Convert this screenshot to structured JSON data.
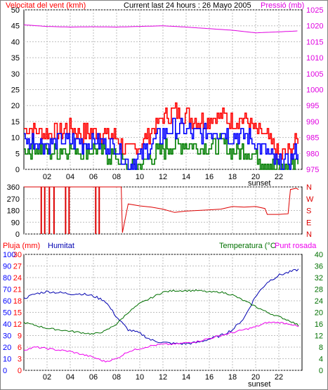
{
  "colors": {
    "frame": "#000000",
    "grid": "#bdbdbd",
    "wind_max": "#ff0000",
    "wind_avg": "#0000ff",
    "wind_min": "#007f00",
    "pressure": "#e000e0",
    "direction": "#dd0000",
    "humidity": "#0000b0",
    "temperature": "#007000",
    "dewpoint": "#ee00ee",
    "rain_axis": "#ff0000",
    "hum_axis": "#0000ff"
  },
  "header": {
    "wind_title": "Velocitat del vent (kmh)",
    "period_title": "Current last 24 hours : 26 Mayo 2005",
    "pressure_title": "Pressió (mb)"
  },
  "bottom_labels": {
    "rain": "Pluja (mm)",
    "humidity": "Humitat",
    "temperature": "Temperatura (°C",
    "dewpoint": "Punt rosada"
  },
  "sunset_label": "sunset",
  "chart_data": [
    {
      "type": "line",
      "title": "Velocitat del vent (kmh)",
      "x": {
        "range": [
          0,
          24
        ],
        "tick_labels": [
          "02",
          "04",
          "06",
          "08",
          "10",
          "12",
          "14",
          "16",
          "18",
          "20",
          "22"
        ]
      },
      "y_left": {
        "label": "Velocitat del vent (kmh)",
        "range": [
          0,
          50
        ],
        "ticks": [
          0,
          5,
          10,
          15,
          20,
          25,
          30,
          35,
          40,
          45,
          50
        ]
      },
      "y_right": {
        "label": "Pressió (mb)",
        "range": [
          975,
          1025
        ],
        "ticks": [
          975,
          980,
          985,
          990,
          995,
          1000,
          1005,
          1010,
          1015,
          1020,
          1025
        ]
      },
      "grid": true,
      "series": [
        {
          "axis": "left",
          "hours": [
            0,
            1,
            2,
            3,
            4,
            5,
            6,
            7,
            8,
            9,
            10,
            11,
            12,
            13,
            14,
            15,
            16,
            17,
            18,
            19,
            20,
            21,
            22,
            23,
            23.7
          ],
          "values": [
            13,
            12,
            11,
            12,
            13,
            11,
            12,
            11,
            10,
            5,
            8,
            12,
            16,
            18,
            17,
            15,
            16,
            17,
            15,
            16,
            12,
            10,
            4,
            6,
            10
          ]
        },
        {
          "axis": "left",
          "hours": [
            0,
            1,
            2,
            3,
            4,
            5,
            6,
            7,
            8,
            9,
            10,
            11,
            12,
            13,
            14,
            15,
            16,
            17,
            18,
            19,
            20,
            21,
            22,
            23,
            23.7
          ],
          "values": [
            9,
            9,
            8,
            9,
            9,
            8,
            9,
            8,
            7,
            2,
            4,
            8,
            11,
            13,
            12,
            11,
            12,
            12,
            10,
            11,
            8,
            5,
            1,
            3,
            7
          ]
        },
        {
          "axis": "left",
          "hours": [
            0,
            1,
            2,
            3,
            4,
            5,
            6,
            7,
            8,
            9,
            10,
            11,
            12,
            13,
            14,
            15,
            16,
            17,
            18,
            19,
            20,
            21,
            22,
            23,
            23.7
          ],
          "values": [
            6,
            7,
            5,
            6,
            7,
            6,
            6,
            5,
            4,
            0,
            1,
            4,
            6,
            8,
            8,
            7,
            7,
            8,
            6,
            6,
            4,
            2,
            0,
            1,
            4
          ]
        },
        {
          "axis": "right",
          "hours": [
            0,
            2,
            4,
            6,
            8,
            10,
            12,
            14,
            16,
            18,
            20,
            22,
            23.7
          ],
          "values": [
            1020.3,
            1019.8,
            1019.6,
            1019.7,
            1019.6,
            1019.8,
            1020.0,
            1019.6,
            1019.1,
            1018.6,
            1017.8,
            1018.1,
            1018.4
          ]
        }
      ]
    },
    {
      "type": "line",
      "title": "",
      "x": {
        "range": [
          0,
          24
        ],
        "tick_labels": []
      },
      "y_left": {
        "range": [
          0,
          360
        ],
        "ticks": [
          0,
          90,
          180,
          270,
          360
        ]
      },
      "y_right": {
        "ticks": [
          "N",
          "E",
          "S",
          "W",
          "N"
        ]
      },
      "grid": true,
      "series": [
        {
          "hours": [
            0,
            0.5,
            1,
            2,
            3,
            4,
            5,
            6,
            7,
            8,
            8.4,
            8.5,
            9,
            10,
            11,
            12,
            13,
            14,
            15,
            16,
            17,
            18,
            19,
            20,
            20.8,
            21,
            22,
            22.8,
            23,
            23.5,
            23.7
          ],
          "values": [
            360,
            360,
            360,
            360,
            360,
            360,
            360,
            360,
            360,
            360,
            360,
            10,
            230,
            215,
            205,
            190,
            165,
            175,
            180,
            185,
            190,
            210,
            205,
            210,
            195,
            150,
            150,
            155,
            340,
            350,
            340
          ]
        }
      ]
    },
    {
      "type": "line",
      "title": "",
      "x": {
        "range": [
          0,
          24
        ],
        "tick_labels": [
          "02",
          "04",
          "06",
          "08",
          "10",
          "12",
          "14",
          "16",
          "18",
          "20",
          "22"
        ]
      },
      "y_left_outer": {
        "label": "Pluja (mm)",
        "ticks": [
          0,
          10,
          20,
          30,
          40,
          50,
          60,
          70,
          80,
          90,
          100
        ]
      },
      "y_left_inner": {
        "label": "Humitat",
        "ticks": [
          0,
          3,
          6,
          9,
          12,
          15,
          18,
          21,
          24,
          27,
          30
        ]
      },
      "y_right": {
        "label": "Temperatura (°C / Punt rosada",
        "range": [
          0,
          40
        ],
        "ticks": [
          0,
          4,
          8,
          12,
          16,
          20,
          24,
          28,
          32,
          36,
          40
        ]
      },
      "grid": true,
      "series": [
        {
          "axis": "left_outer",
          "hours": [
            0,
            1,
            2,
            3,
            4,
            5,
            6,
            7,
            8,
            9,
            10,
            11,
            12,
            13,
            14,
            15,
            16,
            17,
            18,
            19,
            20,
            21,
            22,
            23,
            23.7
          ],
          "values": [
            62,
            66,
            68,
            67,
            66,
            66,
            64,
            60,
            46,
            35,
            32,
            26,
            24,
            23,
            23,
            24,
            27,
            30,
            35,
            45,
            64,
            76,
            82,
            85,
            87
          ]
        },
        {
          "axis": "right",
          "hours": [
            0,
            1,
            2,
            3,
            4,
            5,
            6,
            7,
            8,
            9,
            10,
            11,
            12,
            13,
            14,
            15,
            16,
            17,
            18,
            19,
            20,
            21,
            22,
            23,
            23.7
          ],
          "values": [
            16.5,
            15.5,
            14.5,
            14,
            13.5,
            13,
            12.5,
            13.5,
            16,
            20,
            23,
            25,
            27,
            27.5,
            27.5,
            27.5,
            27,
            27,
            26,
            24,
            22,
            20,
            18.5,
            17,
            15.5
          ]
        },
        {
          "axis": "right",
          "hours": [
            0,
            1,
            2,
            3,
            4,
            5,
            6,
            7,
            8,
            9,
            10,
            11,
            12,
            13,
            14,
            15,
            16,
            17,
            18,
            19,
            20,
            21,
            22,
            23,
            23.7
          ],
          "values": [
            7,
            8,
            7.5,
            7,
            6.5,
            5.5,
            4.5,
            3,
            4,
            6.5,
            7.5,
            8.5,
            9,
            9,
            9.5,
            10,
            11,
            12,
            13,
            14,
            15,
            16.5,
            16.5,
            16,
            15
          ]
        }
      ]
    }
  ]
}
